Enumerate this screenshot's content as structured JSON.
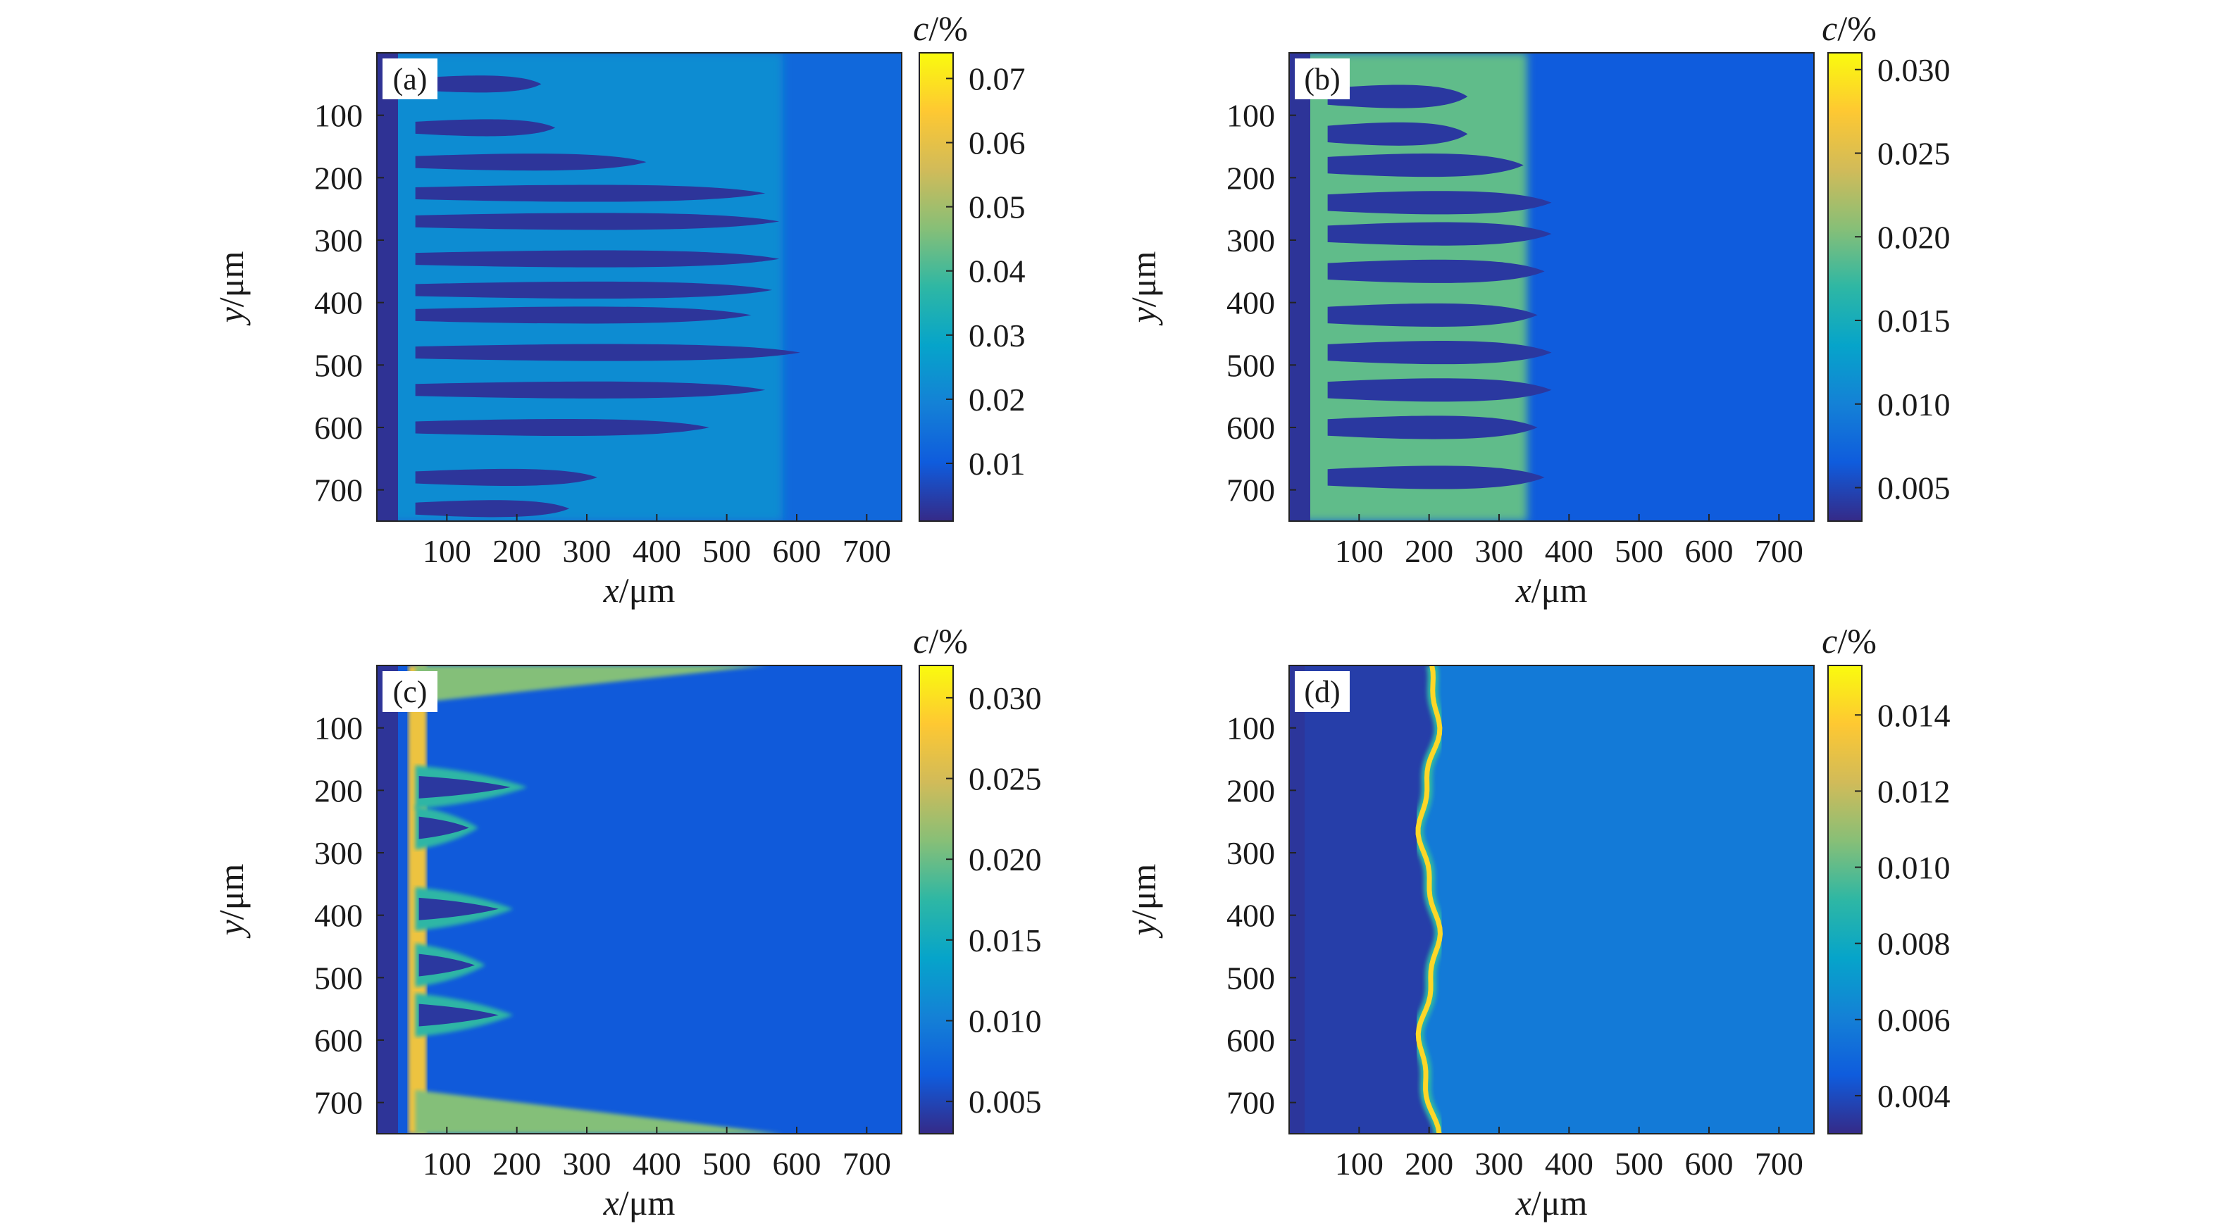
{
  "colors": {
    "colormap": [
      "#352a87",
      "#0f5cdd",
      "#1481d6",
      "#06a4ca",
      "#2eb7a4",
      "#87bf77",
      "#d1bb59",
      "#fec832",
      "#f9fb0e"
    ],
    "lowest_phase": "#2a3aa8",
    "dendrite": "#3b4bb0",
    "background": "#ffffff"
  },
  "chart_data": [
    {
      "id": "a",
      "type": "heatmap",
      "panel_label": "(a)",
      "xlabel_var": "x",
      "xlabel_unit": "/μm",
      "ylabel_var": "y",
      "ylabel_unit": "/μm",
      "xlim": [
        0,
        750
      ],
      "ylim": [
        750,
        0
      ],
      "xticks": [
        100,
        200,
        300,
        400,
        500,
        600,
        700
      ],
      "yticks": [
        100,
        200,
        300,
        400,
        500,
        600,
        700
      ],
      "colorbar_label_var": "c",
      "colorbar_label_unit": "/%",
      "clim": [
        0.001,
        0.074
      ],
      "colorbar_ticks": [
        "0.01",
        "0.02",
        "0.03",
        "0.04",
        "0.05",
        "0.06",
        "0.07"
      ],
      "field": {
        "base": 0.013,
        "liquid_max": 0.022,
        "front_x": 580,
        "arms_y": [
          50,
          120,
          175,
          225,
          270,
          330,
          380,
          420,
          480,
          540,
          600,
          680,
          730
        ],
        "arm_len": [
          180,
          200,
          330,
          500,
          520,
          520,
          510,
          480,
          550,
          500,
          420,
          260,
          220
        ],
        "arm_value": 0.003,
        "interdendritic": 0.022
      }
    },
    {
      "id": "b",
      "type": "heatmap",
      "panel_label": "(b)",
      "xlabel_var": "x",
      "xlabel_unit": "/μm",
      "ylabel_var": "y",
      "ylabel_unit": "/μm",
      "xlim": [
        0,
        750
      ],
      "ylim": [
        750,
        0
      ],
      "xticks": [
        100,
        200,
        300,
        400,
        500,
        600,
        700
      ],
      "yticks": [
        100,
        200,
        300,
        400,
        500,
        600,
        700
      ],
      "colorbar_label_var": "c",
      "colorbar_label_unit": "/%",
      "clim": [
        0.003,
        0.031
      ],
      "colorbar_ticks": [
        "0.005",
        "0.010",
        "0.015",
        "0.020",
        "0.025",
        "0.030"
      ],
      "field": {
        "base": 0.0065,
        "front_x": 340,
        "arms_y": [
          70,
          130,
          180,
          240,
          290,
          350,
          420,
          480,
          540,
          600,
          680
        ],
        "arm_len": [
          200,
          200,
          280,
          320,
          320,
          310,
          300,
          320,
          320,
          300,
          310
        ],
        "arm_value": 0.004,
        "interdendritic": 0.019
      }
    },
    {
      "id": "c",
      "type": "heatmap",
      "panel_label": "(c)",
      "xlabel_var": "x",
      "xlabel_unit": "/μm",
      "ylabel_var": "y",
      "ylabel_unit": "/μm",
      "xlim": [
        0,
        750
      ],
      "ylim": [
        750,
        0
      ],
      "xticks": [
        100,
        200,
        300,
        400,
        500,
        600,
        700
      ],
      "yticks": [
        100,
        200,
        300,
        400,
        500,
        600,
        700
      ],
      "colorbar_label_var": "c",
      "colorbar_label_unit": "/%",
      "clim": [
        0.003,
        0.032
      ],
      "colorbar_ticks": [
        "0.005",
        "0.010",
        "0.015",
        "0.020",
        "0.025",
        "0.030"
      ],
      "field": {
        "base": 0.0065,
        "front_x": 60,
        "bumps_y": [
          195,
          260,
          390,
          480,
          560
        ],
        "bump_len": [
          160,
          90,
          140,
          100,
          140
        ],
        "edge_top_len": 560,
        "edge_bottom_len": 580,
        "arm_value": 0.004,
        "interdendritic": 0.027
      }
    },
    {
      "id": "d",
      "type": "heatmap",
      "panel_label": "(d)",
      "xlabel_var": "x",
      "xlabel_unit": "/μm",
      "ylabel_var": "y",
      "ylabel_unit": "/μm",
      "xlim": [
        0,
        750
      ],
      "ylim": [
        750,
        0
      ],
      "xticks": [
        100,
        200,
        300,
        400,
        500,
        600,
        700
      ],
      "yticks": [
        100,
        200,
        300,
        400,
        500,
        600,
        700
      ],
      "colorbar_label_var": "c",
      "colorbar_label_unit": "/%",
      "clim": [
        0.003,
        0.0153
      ],
      "colorbar_ticks": [
        "0.004",
        "0.006",
        "0.008",
        "0.010",
        "0.012",
        "0.014"
      ],
      "field": {
        "solid_value": 0.0036,
        "liquid_value": 0.0058,
        "front_x": 200,
        "front_wave": 12,
        "peak_value": 0.0142
      }
    }
  ]
}
